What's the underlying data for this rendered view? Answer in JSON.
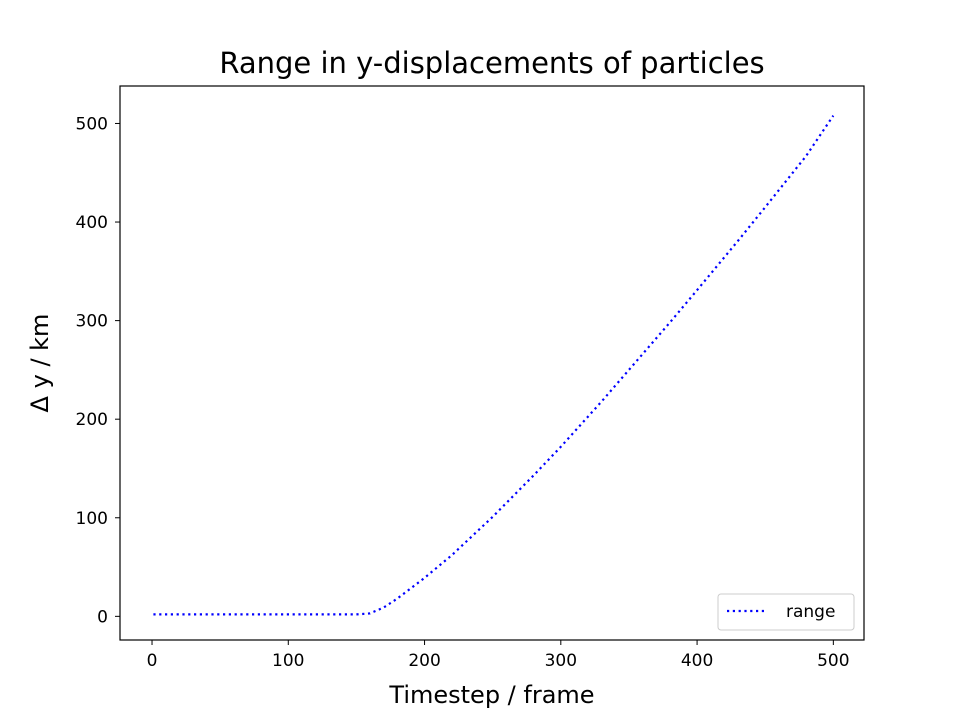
{
  "chart_data": {
    "type": "line",
    "title": "Range in y-displacements of particles",
    "xlabel": "Timestep / frame",
    "ylabel": "Δ y / km",
    "xlim": [
      -23.5,
      522.5
    ],
    "ylim": [
      -24,
      538
    ],
    "xticks": [
      0,
      100,
      200,
      300,
      400,
      500
    ],
    "yticks": [
      0,
      100,
      200,
      300,
      400,
      500
    ],
    "grid": false,
    "legend": {
      "position": "lower-right",
      "entries": [
        "range"
      ]
    },
    "series": [
      {
        "name": "range",
        "color": "#0000ff",
        "linestyle": "dotted",
        "x": [
          1,
          50,
          100,
          150,
          160,
          170,
          180,
          200,
          220,
          250,
          280,
          300,
          330,
          350,
          380,
          400,
          430,
          450,
          480,
          500
        ],
        "y": [
          2,
          2,
          2,
          2,
          3,
          9,
          18,
          39,
          62,
          101,
          143,
          172,
          218,
          250,
          298,
          331,
          381,
          415,
          467,
          508
        ]
      }
    ]
  }
}
